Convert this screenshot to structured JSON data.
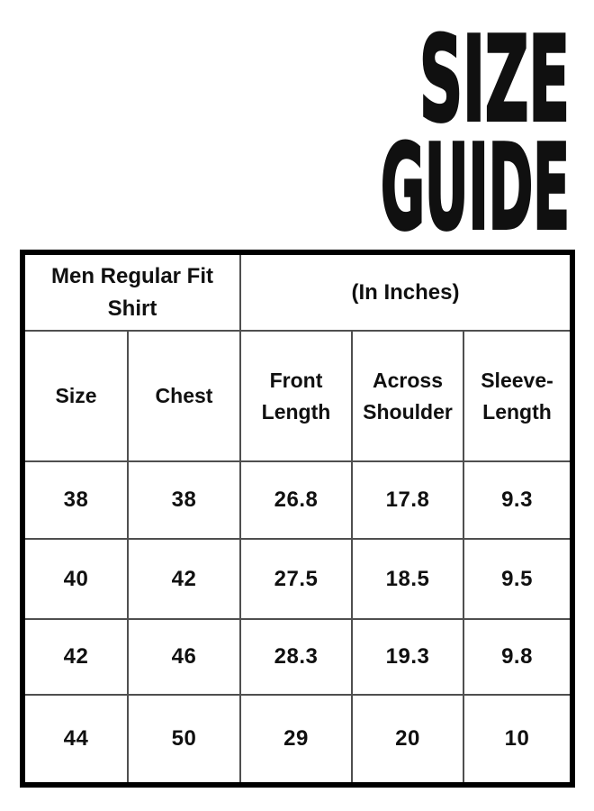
{
  "title": {
    "line1": "SIZE",
    "line2": "GUIDE"
  },
  "chart_data": {
    "type": "table",
    "title": "SIZE GUIDE",
    "group_headers": [
      "Men Regular Fit Shirt",
      "(In Inches)"
    ],
    "columns": [
      "Size",
      "Chest",
      "Front Length",
      "Across Shoulder",
      "Sleeve-Length"
    ],
    "rows": [
      [
        "38",
        "38",
        "26.8",
        "17.8",
        "9.3"
      ],
      [
        "40",
        "42",
        "27.5",
        "18.5",
        "9.5"
      ],
      [
        "42",
        "46",
        "28.3",
        "19.3",
        "9.8"
      ],
      [
        "44",
        "50",
        "29",
        "20",
        "10"
      ]
    ],
    "units": "Inches",
    "colors": {
      "text": "#101010",
      "outer_border": "#000000",
      "grid_line": "#4f4f4f",
      "background": "#ffffff"
    }
  }
}
